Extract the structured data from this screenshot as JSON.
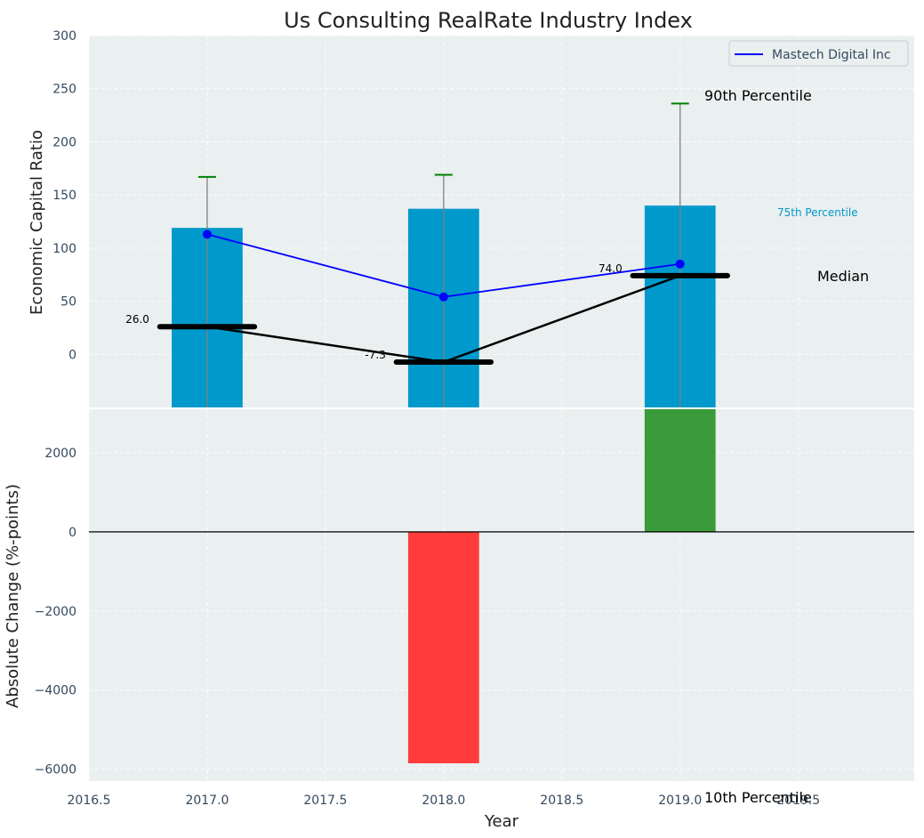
{
  "colors": {
    "plot_bg": "#eaeff0",
    "bar": "#0099cc",
    "line": "#0000ff",
    "median": "#000000",
    "errbar": "#808080",
    "cap": "#008000",
    "pos_change": "#3a9b3a",
    "neg_change": "#ff3b3b",
    "pct75_text": "#0099cc"
  },
  "chart_data": [
    {
      "type": "bar",
      "title": "Us Consulting RealRate Industry Index",
      "ylabel": "Economic Capital Ratio",
      "xlabel": "",
      "x": [
        2017,
        2018,
        2019
      ],
      "xlim": [
        2016.5,
        2019.99
      ],
      "ylim": [
        -50,
        300
      ],
      "yticks": [
        "0",
        "50",
        "100",
        "150",
        "200",
        "250",
        "300"
      ],
      "ytick_values": [
        0,
        50,
        100,
        150,
        200,
        250,
        300
      ],
      "grid": true,
      "legend": "top-right",
      "series": [
        {
          "name": "",
          "kind": "bar",
          "label": "75th Percentile",
          "values": [
            119,
            137,
            140
          ]
        },
        {
          "name": "Mastech Digital Inc",
          "kind": "line",
          "values": [
            113,
            54,
            85
          ]
        },
        {
          "name": "",
          "kind": "median",
          "label": "Median",
          "values": [
            26.0,
            -7.3,
            74.0
          ],
          "value_labels": [
            "26.0",
            "-7.3",
            "74.0"
          ]
        },
        {
          "name": "",
          "kind": "percentile90",
          "label": "90th Percentile",
          "values": [
            167,
            169,
            236
          ]
        },
        {
          "name": "",
          "kind": "percentile10",
          "label": "10th Percentile",
          "values": [
            -50,
            -50,
            -50
          ]
        }
      ]
    },
    {
      "type": "bar",
      "title": "",
      "ylabel": "Absolute Change (%-points)",
      "xlabel": "Year",
      "x": [
        2018,
        2019
      ],
      "values": [
        -5850,
        3100
      ],
      "xlim": [
        2016.5,
        2019.99
      ],
      "ylim": [
        -6300,
        3100
      ],
      "yticks": [
        "−6000",
        "−4000",
        "−2000",
        "0",
        "2000"
      ],
      "ytick_values": [
        -6000,
        -4000,
        -2000,
        0,
        2000
      ],
      "xticks": [
        "2016.5",
        "2017.0",
        "2017.5",
        "2018.0",
        "2018.5",
        "2019.0",
        "2019.5"
      ],
      "xtick_values": [
        2016.5,
        2017.0,
        2017.5,
        2018.0,
        2018.5,
        2019.0,
        2019.5
      ],
      "grid": true
    }
  ],
  "labels": {
    "title": "Us Consulting RealRate Industry Index",
    "ylabel_top": "Economic Capital Ratio",
    "ylabel_bottom": "Absolute Change (%-points)",
    "xlabel": "Year",
    "legend_line": "Mastech Digital Inc",
    "p90": "90th Percentile",
    "p75": "75th Percentile",
    "median": "Median",
    "p10": "10th Percentile"
  }
}
